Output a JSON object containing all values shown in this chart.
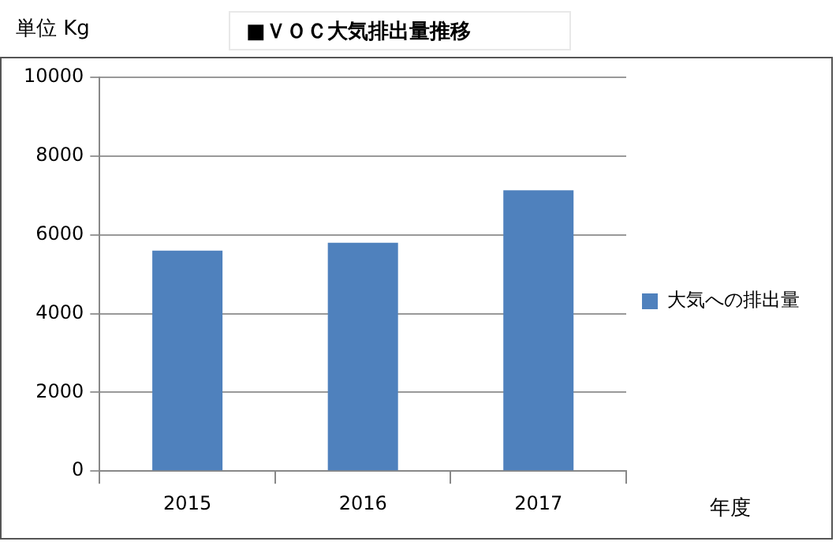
{
  "chart_data": {
    "type": "bar",
    "title": "■ＶＯＣ大気排出量推移",
    "ylabel": "単位 Kg",
    "xlabel": "年度",
    "categories": [
      "2015",
      "2016",
      "2017"
    ],
    "series": [
      {
        "name": "大気への排出量",
        "color": "#4f81bd",
        "values": [
          5600,
          5800,
          7130
        ]
      }
    ],
    "ylim": [
      0,
      10000
    ],
    "yticks": [
      0,
      2000,
      4000,
      6000,
      8000,
      10000
    ],
    "grid": "y",
    "legend": "right"
  }
}
